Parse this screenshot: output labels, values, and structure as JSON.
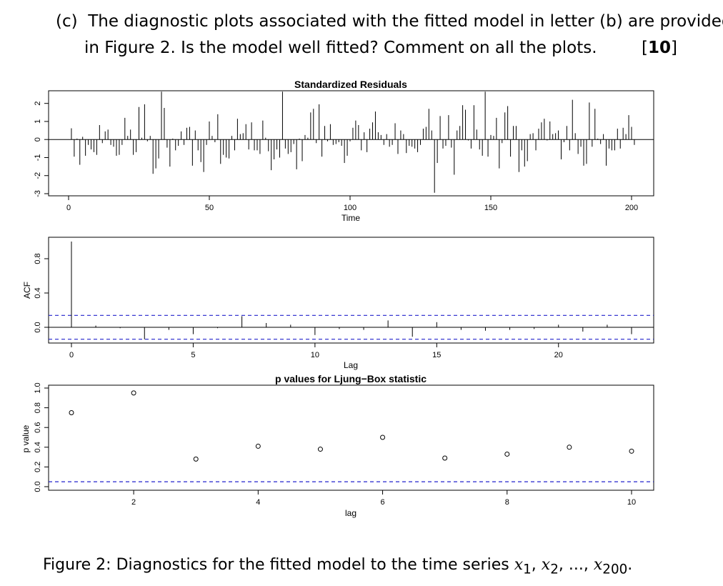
{
  "question": {
    "label": "(c)",
    "line1": "The diagnostic plots associated with the fitted model in letter (b) are provided",
    "line2": "in Figure 2. Is the model well fitted? Comment on all the plots.",
    "marks_open": "[",
    "marks": "10",
    "marks_close": "]"
  },
  "caption": {
    "prefix": "Figure 2: Diagnostics for the fitted model to the time series ",
    "series_var": "x",
    "sub1": "1",
    "sub2": "2",
    "dots": "...",
    "sub_last": "200",
    "end": "."
  },
  "chart_data": [
    {
      "type": "bar",
      "title": "Standardized Residuals",
      "xlabel": "Time",
      "ylabel": "",
      "xlim": [
        0,
        200
      ],
      "ylim": [
        -3,
        2.7
      ],
      "xticks": [
        0,
        50,
        100,
        150,
        200
      ],
      "yticks": [
        -3,
        -2,
        -1,
        0,
        1,
        2
      ],
      "n": 200,
      "values": [
        0.62,
        -0.95,
        0.05,
        -1.4,
        0.15,
        -0.9,
        -0.3,
        -0.55,
        -0.7,
        -0.85,
        0.8,
        -0.2,
        0.45,
        0.55,
        -0.3,
        -0.4,
        -0.9,
        -0.85,
        -0.3,
        1.2,
        0.2,
        0.55,
        -0.85,
        -0.7,
        1.8,
        0.1,
        1.95,
        -0.1,
        0.2,
        -1.9,
        -1.6,
        -1.05,
        2.65,
        1.75,
        -0.45,
        -1.5,
        0.05,
        -0.6,
        -0.35,
        0.45,
        -0.3,
        0.65,
        0.7,
        -1.45,
        0.5,
        -0.6,
        -1.25,
        -1.8,
        -0.3,
        1.0,
        0.2,
        -0.15,
        1.4,
        -1.35,
        -0.85,
        -1.0,
        -1.05,
        0.2,
        -0.6,
        1.15,
        0.3,
        0.35,
        0.85,
        -0.55,
        0.95,
        -0.6,
        -0.6,
        -0.8,
        1.05,
        0.1,
        -0.65,
        -1.7,
        -1.1,
        -0.55,
        -1.0,
        2.65,
        -0.5,
        -0.8,
        -0.7,
        -0.25,
        -1.65,
        0.05,
        -1.2,
        0.25,
        0.1,
        1.5,
        1.7,
        -0.2,
        1.95,
        -0.95,
        0.75,
        -0.1,
        0.85,
        -0.3,
        -0.25,
        -0.15,
        -0.35,
        -1.3,
        -0.9,
        -0.1,
        0.65,
        1.05,
        0.8,
        -0.6,
        0.4,
        -0.7,
        0.6,
        0.95,
        1.55,
        0.4,
        0.25,
        -0.3,
        0.3,
        -0.4,
        -0.3,
        0.9,
        -0.8,
        0.5,
        0.3,
        -0.75,
        -0.35,
        -0.4,
        -0.5,
        -0.7,
        -0.3,
        0.6,
        0.7,
        1.7,
        0.5,
        -2.95,
        -1.3,
        1.3,
        -0.5,
        -0.35,
        1.35,
        -0.45,
        -1.95,
        0.5,
        0.75,
        1.9,
        1.65,
        -0.05,
        -0.5,
        1.9,
        0.55,
        -0.55,
        -0.9,
        2.65,
        -0.95,
        0.25,
        0.2,
        1.2,
        -1.6,
        -0.2,
        1.5,
        1.85,
        -0.95,
        0.75,
        0.75,
        -1.8,
        -0.6,
        -1.5,
        -1.2,
        0.3,
        0.35,
        -0.6,
        0.6,
        0.95,
        1.15,
        -0.05,
        1.0,
        0.3,
        0.35,
        0.5,
        -1.1,
        -0.15,
        0.75,
        -0.6,
        2.2,
        0.35,
        -0.8,
        -0.4,
        -1.45,
        -1.35,
        2.05,
        -0.4,
        1.7,
        0.05,
        -0.25,
        0.3,
        -1.45,
        -0.5,
        -0.6,
        -0.6,
        0.6,
        -0.5,
        0.65,
        0.3,
        1.35,
        0.7,
        -0.3
      ]
    },
    {
      "type": "bar",
      "title": "",
      "xlabel": "Lag",
      "ylabel": "ACF",
      "xlim": [
        0,
        23
      ],
      "ylim": [
        -0.15,
        1.0
      ],
      "xticks": [
        0,
        5,
        10,
        15,
        20
      ],
      "yticks": [
        0.0,
        0.4,
        0.8
      ],
      "yticklabels": [
        "0.0",
        "0.4",
        "0.8"
      ],
      "x": [
        0,
        1,
        2,
        3,
        4,
        5,
        6,
        7,
        8,
        9,
        10,
        11,
        12,
        13,
        14,
        15,
        16,
        17,
        18,
        19,
        20,
        21,
        22,
        23
      ],
      "values": [
        1.0,
        0.02,
        -0.01,
        -0.14,
        -0.03,
        -0.08,
        -0.01,
        0.13,
        0.05,
        0.03,
        -0.09,
        -0.02,
        -0.03,
        0.08,
        -0.11,
        0.06,
        -0.03,
        -0.04,
        -0.03,
        -0.02,
        0.03,
        -0.05,
        0.03,
        -0.08
      ],
      "confidence_band": 0.139
    },
    {
      "type": "scatter",
      "title": "p values for Ljung−Box statistic",
      "xlabel": "lag",
      "ylabel": "p value",
      "xlim": [
        0.7,
        10.3
      ],
      "ylim": [
        0,
        1.0
      ],
      "xticks": [
        2,
        4,
        6,
        8,
        10
      ],
      "yticks": [
        0.0,
        0.2,
        0.4,
        0.6,
        0.8,
        1.0
      ],
      "yticklabels": [
        "0.0",
        "0.2",
        "0.4",
        "0.6",
        "0.8",
        "1.0"
      ],
      "x": [
        1,
        2,
        3,
        4,
        5,
        6,
        7,
        8,
        9,
        10
      ],
      "values": [
        0.75,
        0.95,
        0.28,
        0.41,
        0.38,
        0.5,
        0.29,
        0.33,
        0.4,
        0.36
      ],
      "reference_line": 0.05
    }
  ]
}
